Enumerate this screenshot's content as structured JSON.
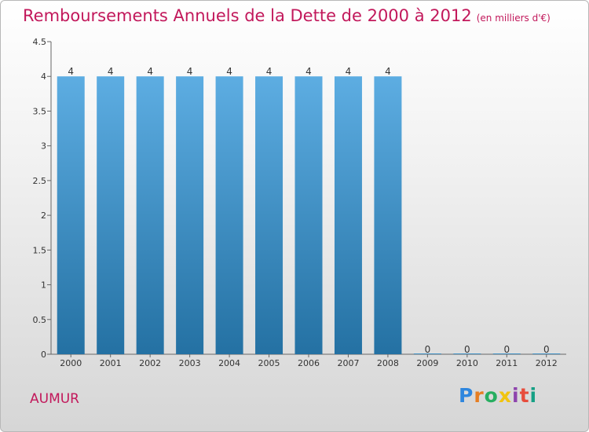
{
  "header": {
    "title": "Remboursements Annuels de la Dette de 2000 à 2012",
    "subtitle": "(en milliers d'€)"
  },
  "footer": {
    "commune": "AUMUR",
    "logo_text": "Proxiti"
  },
  "colors": {
    "title": "#c2185b",
    "bar_top": "#5dade2",
    "bar_bottom": "#2471a3"
  },
  "chart_data": {
    "type": "bar",
    "categories": [
      "2000",
      "2001",
      "2002",
      "2003",
      "2004",
      "2005",
      "2006",
      "2007",
      "2008",
      "2009",
      "2010",
      "2011",
      "2012"
    ],
    "values": [
      4,
      4,
      4,
      4,
      4,
      4,
      4,
      4,
      4,
      0,
      0,
      0,
      0
    ],
    "data_labels": [
      "4",
      "4",
      "4",
      "4",
      "4",
      "4",
      "4",
      "4",
      "4",
      "0",
      "0",
      "0",
      "0"
    ],
    "ylim": [
      0,
      4.5
    ],
    "yticks": [
      "0",
      "0.5",
      "1",
      "1.5",
      "2",
      "2.5",
      "3",
      "3.5",
      "4",
      "4.5"
    ],
    "grid": false,
    "title": "Remboursements Annuels de la Dette de 2000 à 2012",
    "subtitle": "(en milliers d'€)"
  }
}
